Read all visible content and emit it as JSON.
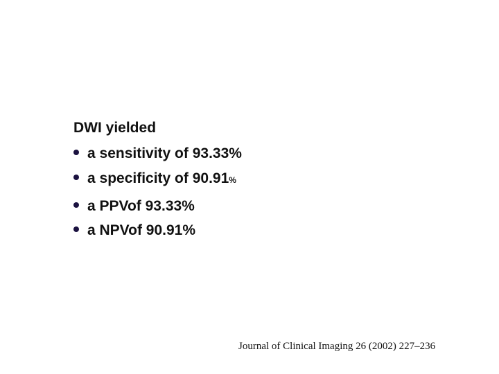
{
  "heading": "DWI yielded",
  "bullets": [
    {
      "text": "a sensitivity of 93.33%"
    },
    {
      "text": "a specificity of 90.91",
      "suffix": "%"
    },
    {
      "text": "a PPVof 93.33%"
    },
    {
      "text": "a NPVof 90.91%"
    }
  ],
  "citation": "Journal of Clinical Imaging 26 (2002) 227–236",
  "colors": {
    "text": "#111111",
    "bullet_dot": "#1b1240",
    "background": "#ffffff"
  }
}
